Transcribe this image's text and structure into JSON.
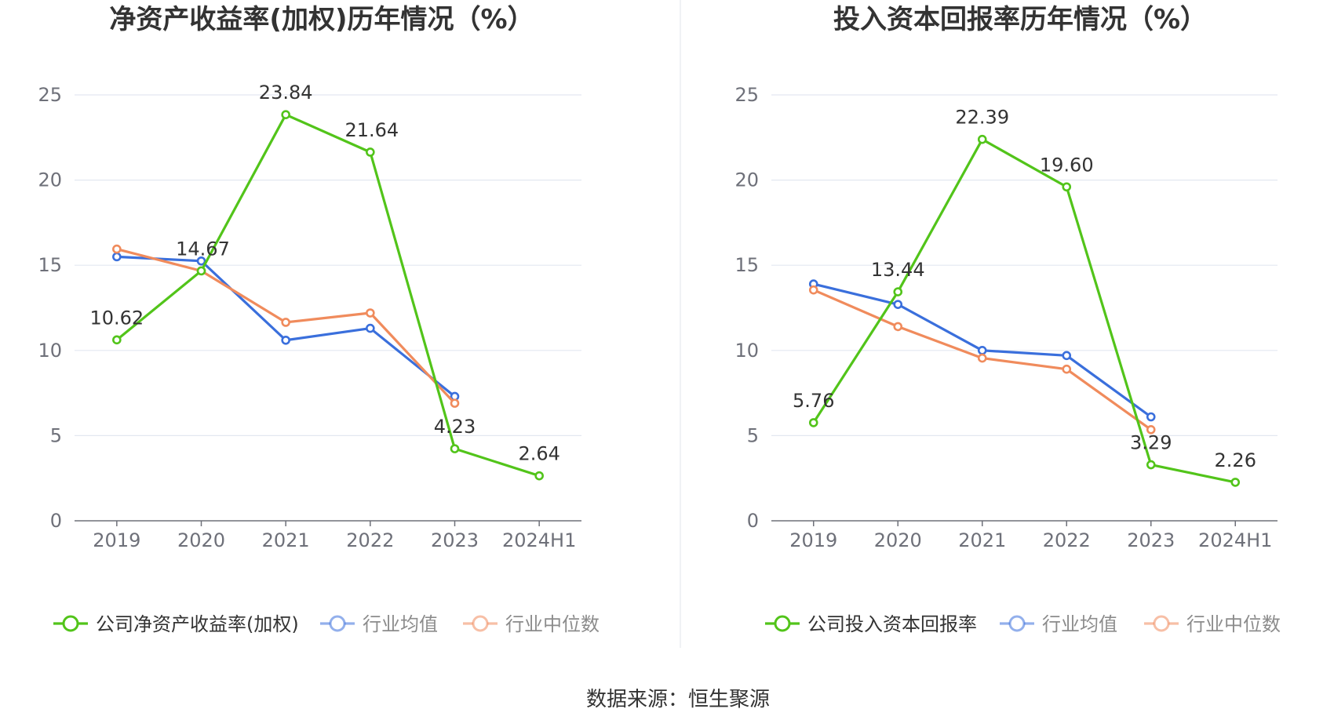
{
  "source_text": "数据来源：恒生聚源",
  "chart_data": [
    {
      "type": "line",
      "title": "净资产收益率(加权)历年情况（%）",
      "categories": [
        "2019",
        "2020",
        "2021",
        "2022",
        "2023",
        "2024H1"
      ],
      "ylim": [
        0,
        25
      ],
      "yticks": [
        0,
        5,
        10,
        15,
        20,
        25
      ],
      "grid": true,
      "legend_position": "bottom",
      "series": [
        {
          "name": "公司净资产收益率(加权)",
          "color": "#52c41a",
          "values": [
            10.62,
            14.67,
            23.84,
            21.64,
            4.23,
            2.64
          ],
          "labels": [
            "10.62",
            "14.67",
            "23.84",
            "21.64",
            "4.23",
            "2.64"
          ]
        },
        {
          "name": "行业均值",
          "color": "#3a6fdc",
          "values": [
            15.5,
            15.25,
            10.6,
            11.3,
            7.3,
            null
          ]
        },
        {
          "name": "行业中位数",
          "color": "#f08b5c",
          "values": [
            15.95,
            14.67,
            11.65,
            12.2,
            6.9,
            null
          ]
        }
      ]
    },
    {
      "type": "line",
      "title": "投入资本回报率历年情况（%）",
      "categories": [
        "2019",
        "2020",
        "2021",
        "2022",
        "2023",
        "2024H1"
      ],
      "ylim": [
        0,
        25
      ],
      "yticks": [
        0,
        5,
        10,
        15,
        20,
        25
      ],
      "grid": true,
      "legend_position": "bottom",
      "series": [
        {
          "name": "公司投入资本回报率",
          "color": "#52c41a",
          "values": [
            5.76,
            13.44,
            22.39,
            19.6,
            3.29,
            2.26
          ],
          "labels": [
            "5.76",
            "13.44",
            "22.39",
            "19.60",
            "3.29",
            "2.26"
          ]
        },
        {
          "name": "行业均值",
          "color": "#3a6fdc",
          "values": [
            13.9,
            12.7,
            10.0,
            9.7,
            6.1,
            null
          ]
        },
        {
          "name": "行业中位数",
          "color": "#f08b5c",
          "values": [
            13.55,
            11.4,
            9.55,
            8.9,
            5.35,
            null
          ]
        }
      ]
    }
  ]
}
